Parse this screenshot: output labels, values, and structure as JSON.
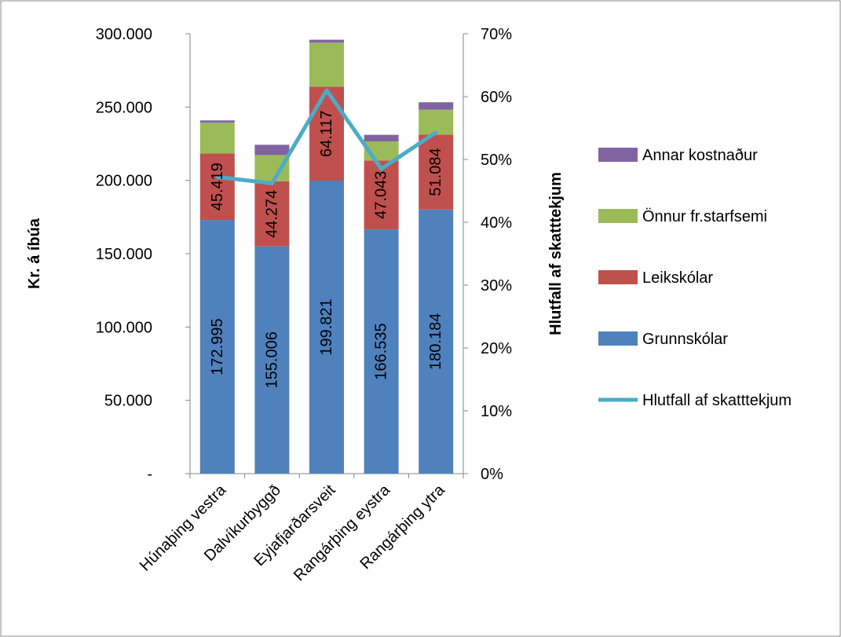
{
  "chart_data": {
    "type": "bar",
    "stacked": true,
    "categories": [
      "Húnaþing vestra",
      "Dalvíkurbyggð",
      "Eyjafjarðarsveit",
      "Rangárþing eystra",
      "Rangárþing ytra"
    ],
    "series": [
      {
        "name": "Grunnskólar",
        "color": "#4F81BD",
        "values": [
          172995,
          155006,
          199821,
          166535,
          180184
        ],
        "labels": [
          "172.995",
          "155.006",
          "199.821",
          "166.535",
          "180.184"
        ]
      },
      {
        "name": "Leikskólar",
        "color": "#C0504D",
        "values": [
          45419,
          44274,
          64117,
          47043,
          51084
        ],
        "labels": [
          "45.419",
          "44.274",
          "64.117",
          "47.043",
          "51.084"
        ]
      },
      {
        "name": "Önnur fr.starfsemi",
        "color": "#9BBB59",
        "values": [
          21000,
          18000,
          30000,
          13000,
          17000
        ]
      },
      {
        "name": "Annar kostnaður",
        "color": "#8064A2",
        "values": [
          1500,
          7000,
          2000,
          4500,
          5000
        ]
      }
    ],
    "line": {
      "name": "Hlutfall af skatttekjum",
      "color": "#4BACC6",
      "values": [
        0.472,
        0.462,
        0.61,
        0.485,
        0.543
      ],
      "axis": "secondary"
    },
    "ylabel": "Kr. á íbúa",
    "y2label": "Hlutfall af skatttekjum",
    "ylim": [
      0,
      300000
    ],
    "y2lim": [
      0,
      0.7
    ],
    "yticks": [
      "-",
      "50.000",
      "100.000",
      "150.000",
      "200.000",
      "250.000",
      "300.000"
    ],
    "y2ticks": [
      "0%",
      "10%",
      "20%",
      "30%",
      "40%",
      "50%",
      "60%",
      "70%"
    ],
    "legend_position": "right"
  }
}
